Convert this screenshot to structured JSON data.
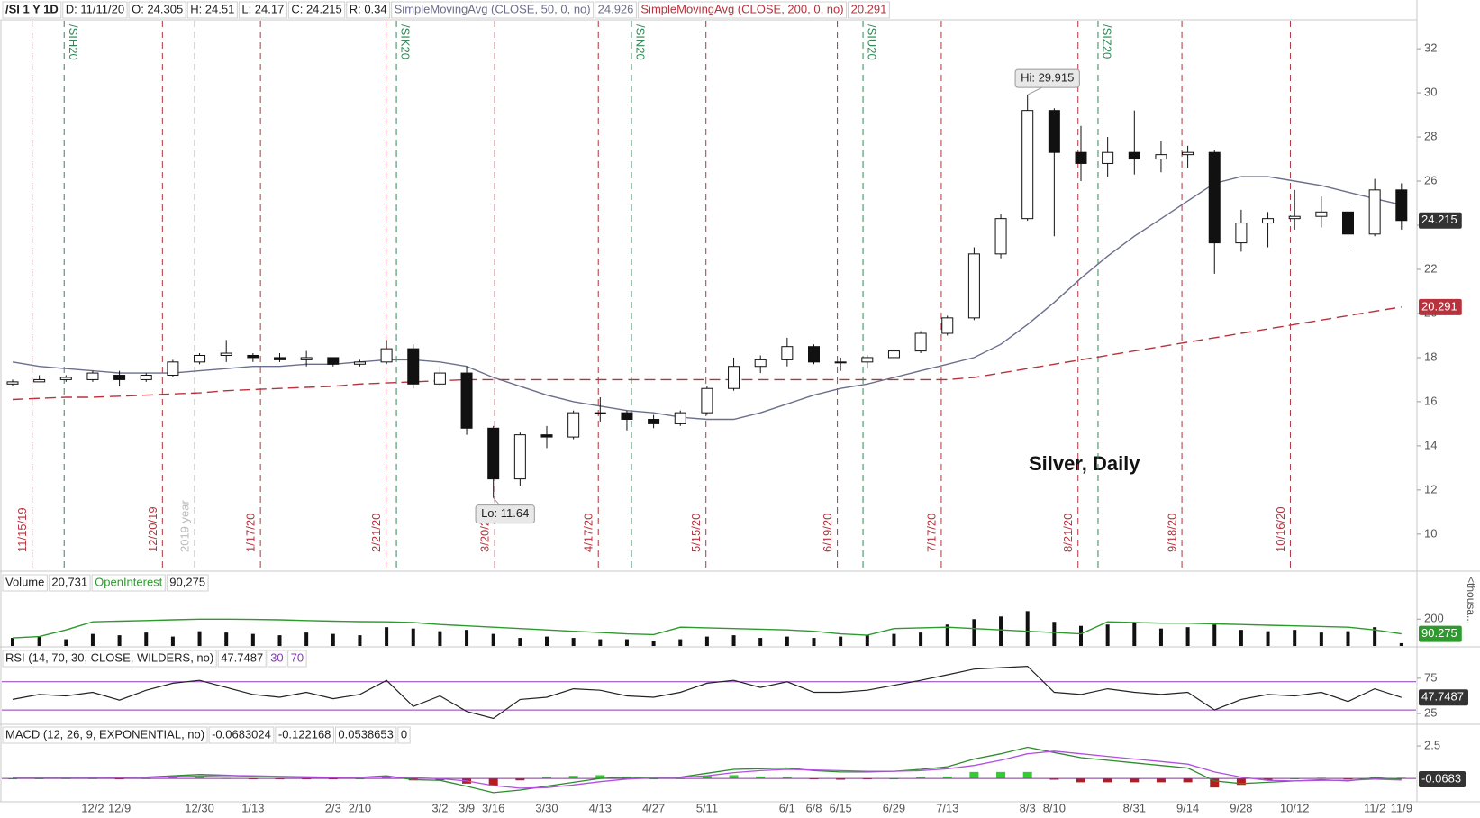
{
  "chart_data": [
    {
      "type": "candlestick",
      "title": "/SI 1 Y 1D",
      "header": [
        "D: 11/11/20",
        "O: 24.305",
        "H: 24.51",
        "L: 24.17",
        "C: 24.215",
        "R: 0.34"
      ],
      "categories": [
        null,
        null,
        null,
        "12/2",
        "12/9",
        null,
        null,
        "12/30",
        null,
        "1/13",
        null,
        null,
        "2/3",
        "2/10",
        null,
        null,
        "3/2",
        "3/9",
        "3/16",
        null,
        "3/30",
        null,
        "4/13",
        null,
        "4/27",
        null,
        "5/11",
        null,
        null,
        "6/1",
        "6/8",
        "6/15",
        null,
        "6/29",
        null,
        "7/13",
        null,
        null,
        "8/3",
        "8/10",
        null,
        null,
        "8/31",
        null,
        "9/14",
        null,
        "9/28",
        null,
        "10/12",
        null,
        null,
        "11/2",
        "11/9"
      ],
      "open": [
        16.8,
        16.9,
        17.0,
        17.0,
        17.2,
        17.0,
        17.2,
        17.8,
        18.1,
        18.1,
        18.0,
        17.9,
        18.0,
        17.7,
        17.8,
        18.4,
        16.8,
        17.3,
        14.8,
        12.5,
        14.5,
        14.4,
        15.5,
        15.5,
        15.2,
        15.0,
        15.5,
        16.6,
        17.6,
        17.9,
        18.5,
        17.8,
        17.8,
        18.0,
        18.3,
        19.1,
        19.8,
        22.7,
        24.3,
        29.2,
        27.3,
        26.8,
        27.3,
        27.0,
        27.2,
        27.3,
        23.2,
        24.1,
        24.3,
        24.4,
        24.6,
        23.6,
        25.6
      ],
      "high": [
        17.0,
        17.2,
        17.2,
        17.4,
        17.4,
        17.3,
        17.9,
        18.2,
        18.8,
        18.2,
        18.2,
        18.3,
        18.0,
        17.9,
        18.8,
        18.6,
        17.6,
        17.6,
        14.9,
        14.6,
        14.9,
        15.6,
        16.2,
        15.6,
        15.4,
        15.6,
        16.7,
        18.0,
        18.1,
        18.9,
        18.6,
        18.0,
        18.1,
        18.4,
        19.2,
        19.9,
        23.0,
        24.5,
        29.915,
        29.3,
        28.5,
        28.0,
        29.2,
        27.8,
        27.6,
        27.4,
        24.7,
        24.6,
        25.6,
        25.3,
        24.8,
        26.1,
        25.9
      ],
      "low": [
        16.7,
        16.9,
        16.9,
        16.9,
        16.7,
        16.9,
        17.1,
        17.7,
        17.8,
        17.8,
        17.8,
        17.6,
        17.6,
        17.6,
        17.7,
        16.6,
        16.7,
        14.5,
        11.64,
        12.2,
        13.9,
        14.3,
        15.1,
        14.7,
        14.8,
        14.9,
        15.4,
        16.5,
        17.3,
        17.6,
        17.7,
        17.4,
        17.5,
        17.9,
        18.2,
        19.0,
        19.7,
        22.5,
        24.2,
        23.5,
        26.0,
        26.2,
        26.3,
        26.4,
        26.6,
        21.8,
        22.8,
        23.0,
        23.8,
        23.9,
        22.9,
        23.5,
        23.8
      ],
      "close": [
        16.9,
        17.0,
        17.1,
        17.3,
        17.0,
        17.2,
        17.8,
        18.1,
        18.2,
        18.0,
        17.9,
        18.0,
        17.7,
        17.8,
        18.4,
        16.8,
        17.3,
        14.8,
        12.5,
        14.5,
        14.4,
        15.5,
        15.5,
        15.2,
        15.0,
        15.5,
        16.6,
        17.6,
        17.9,
        18.5,
        17.8,
        17.8,
        18.0,
        18.3,
        19.1,
        19.8,
        22.7,
        24.3,
        29.2,
        27.3,
        26.8,
        27.3,
        27.0,
        27.2,
        27.3,
        23.2,
        24.1,
        24.3,
        24.4,
        24.6,
        23.6,
        25.6,
        24.215
      ],
      "series": [
        {
          "name": "SimpleMovingAvg (CLOSE, 50, 0, no)",
          "color": "#6b6f8c",
          "dashed": false,
          "values": [
            17.8,
            17.6,
            17.5,
            17.4,
            17.3,
            17.3,
            17.3,
            17.4,
            17.5,
            17.6,
            17.6,
            17.7,
            17.7,
            17.8,
            17.9,
            17.9,
            17.8,
            17.6,
            17.1,
            16.7,
            16.3,
            16.0,
            15.8,
            15.6,
            15.5,
            15.3,
            15.2,
            15.2,
            15.5,
            15.9,
            16.3,
            16.6,
            16.8,
            17.1,
            17.4,
            17.7,
            18.0,
            18.6,
            19.5,
            20.5,
            21.6,
            22.6,
            23.5,
            24.3,
            25.1,
            25.9,
            26.2,
            26.2,
            26.0,
            25.8,
            25.5,
            25.2,
            24.926
          ]
        },
        {
          "name": "SimpleMovingAvg (CLOSE, 200, 0, no)",
          "color": "#b8323d",
          "dashed": true,
          "values": [
            16.1,
            16.15,
            16.2,
            16.2,
            16.25,
            16.3,
            16.35,
            16.4,
            16.5,
            16.55,
            16.6,
            16.65,
            16.7,
            16.8,
            16.85,
            16.9,
            16.95,
            17.0,
            17.0,
            17.0,
            17.0,
            17.0,
            17.0,
            17.0,
            17.0,
            17.0,
            17.0,
            17.0,
            17.0,
            17.0,
            17.0,
            17.0,
            17.0,
            17.0,
            17.0,
            17.0,
            17.1,
            17.3,
            17.5,
            17.7,
            17.9,
            18.1,
            18.3,
            18.5,
            18.7,
            18.9,
            19.1,
            19.3,
            19.5,
            19.7,
            19.9,
            20.1,
            20.291
          ]
        }
      ],
      "ylim": [
        8.36,
        33.27
      ],
      "yticks": [
        10,
        12,
        14,
        16,
        18,
        20,
        22,
        24,
        26,
        28,
        30,
        32
      ],
      "hi_label": "Hi: 29.915",
      "lo_label": "Lo: 11.64",
      "annotations": [
        "Silver, Daily"
      ],
      "expiration_lines": {
        "color": "#2e8b57",
        "items": [
          {
            "label": "/SIH20",
            "x": 1.93
          },
          {
            "label": "/SIK20",
            "x": 14.37
          },
          {
            "label": "/SIN20",
            "x": 23.17
          },
          {
            "label": "/SIU20",
            "x": 31.84
          },
          {
            "label": "/SIZ20",
            "x": 40.64
          }
        ]
      },
      "monthly_lines": {
        "color": "#b8323d",
        "items": [
          {
            "label": "11/15/19",
            "x": 0.73
          },
          {
            "label": "12/20/19",
            "x": 5.61
          },
          {
            "label": "1/17/20",
            "x": 9.28
          },
          {
            "label": "2/21/20",
            "x": 13.98
          },
          {
            "label": "3/20/20",
            "x": 18.05
          },
          {
            "label": "4/17/20",
            "x": 21.93
          },
          {
            "label": "5/15/20",
            "x": 25.96
          },
          {
            "label": "6/19/20",
            "x": 30.88
          },
          {
            "label": "7/17/20",
            "x": 34.77
          },
          {
            "label": "8/21/20",
            "x": 39.89
          },
          {
            "label": "9/18/20",
            "x": 43.78
          },
          {
            "label": "10/16/20",
            "x": 47.84
          }
        ]
      },
      "year_line": {
        "color": "#bbbbbb",
        "label": "2019 year",
        "x": 6.81
      }
    },
    {
      "type": "bar",
      "title": "Volume",
      "volume_label": "20,731",
      "unit_label": "<thousa...",
      "color": "#111111",
      "values": [
        60,
        70,
        50,
        90,
        80,
        100,
        70,
        110,
        100,
        90,
        80,
        100,
        90,
        80,
        140,
        130,
        110,
        120,
        90,
        60,
        70,
        60,
        50,
        50,
        40,
        50,
        70,
        80,
        60,
        70,
        60,
        70,
        80,
        90,
        100,
        160,
        200,
        220,
        260,
        180,
        150,
        160,
        170,
        130,
        140,
        160,
        120,
        110,
        120,
        100,
        110,
        140,
        20.731
      ],
      "series": [
        {
          "name": "OpenInterest",
          "label": "90,275",
          "color": "#2e9a2e",
          "values": [
            60,
            70,
            120,
            180,
            185,
            190,
            195,
            200,
            200,
            198,
            195,
            190,
            185,
            182,
            180,
            175,
            160,
            150,
            140,
            130,
            120,
            110,
            100,
            90,
            85,
            140,
            135,
            130,
            125,
            120,
            110,
            90,
            80,
            130,
            135,
            140,
            130,
            120,
            110,
            100,
            90,
            180,
            175,
            170,
            170,
            165,
            160,
            155,
            150,
            145,
            140,
            120,
            90.275
          ]
        }
      ],
      "ylim": [
        0,
        545
      ],
      "yticks": [
        200
      ]
    },
    {
      "type": "line",
      "title": "RSI (14, 70, 30, CLOSE, WILDERS, no)",
      "color": "#222222",
      "level_color": "#8a3ab9",
      "levels": [
        30,
        70
      ],
      "values": [
        45,
        52,
        50,
        55,
        44,
        58,
        68,
        72,
        62,
        52,
        48,
        55,
        46,
        52,
        72,
        35,
        50,
        28,
        18,
        45,
        48,
        60,
        58,
        50,
        48,
        55,
        68,
        72,
        62,
        70,
        55,
        55,
        58,
        65,
        72,
        80,
        88,
        90,
        92,
        55,
        52,
        60,
        55,
        52,
        55,
        30,
        45,
        52,
        50,
        55,
        42,
        60,
        47.7487
      ],
      "ylim": [
        11,
        117
      ],
      "yticks": [
        25,
        75
      ]
    },
    {
      "type": "macd",
      "title": "MACD (12, 26, 9, EXPONENTIAL, no)",
      "badge": "-0.0683",
      "levels": [
        0
      ],
      "level_color": "#7a3a8a",
      "series": [
        {
          "color": "#2e8b2e",
          "values": [
            0.05,
            0.06,
            0.08,
            0.1,
            0.05,
            0.1,
            0.2,
            0.3,
            0.25,
            0.15,
            0.1,
            0.08,
            0.05,
            0.08,
            0.2,
            -0.1,
            -0.15,
            -0.6,
            -1.1,
            -0.9,
            -0.6,
            -0.3,
            0,
            0.1,
            0.05,
            0.1,
            0.4,
            0.7,
            0.75,
            0.8,
            0.6,
            0.5,
            0.5,
            0.55,
            0.7,
            0.9,
            1.5,
            1.9,
            2.4,
            2.0,
            1.6,
            1.4,
            1.2,
            1.0,
            0.8,
            -0.2,
            -0.4,
            -0.3,
            -0.2,
            -0.1,
            -0.2,
            0.05,
            -0.0683024
          ]
        },
        {
          "color": "#b050e0",
          "values": [
            0.05,
            0.05,
            0.06,
            0.08,
            0.07,
            0.08,
            0.12,
            0.18,
            0.22,
            0.2,
            0.16,
            0.12,
            0.09,
            0.08,
            0.12,
            0.05,
            -0.02,
            -0.2,
            -0.55,
            -0.75,
            -0.7,
            -0.5,
            -0.25,
            -0.05,
            0.05,
            0.08,
            0.2,
            0.45,
            0.6,
            0.7,
            0.65,
            0.6,
            0.55,
            0.55,
            0.6,
            0.75,
            1.0,
            1.4,
            1.9,
            2.1,
            1.9,
            1.7,
            1.5,
            1.3,
            1.1,
            0.5,
            0.1,
            -0.15,
            -0.2,
            -0.15,
            -0.15,
            -0.05,
            -0.122168
          ]
        }
      ],
      "histogram": {
        "up_color": "#33cc33",
        "down_color": "#b71c1c",
        "values": [
          0,
          0.01,
          0.02,
          0.02,
          -0.02,
          0.02,
          0.08,
          0.12,
          0.03,
          -0.05,
          -0.06,
          -0.04,
          -0.04,
          0,
          0.08,
          -0.15,
          -0.13,
          -0.4,
          -0.55,
          -0.15,
          0.1,
          0.2,
          0.25,
          0.15,
          0,
          0.02,
          0.2,
          0.25,
          0.15,
          0.1,
          -0.05,
          -0.1,
          -0.05,
          0,
          0.1,
          0.15,
          0.5,
          0.5,
          0.5,
          -0.1,
          -0.3,
          -0.3,
          -0.3,
          -0.3,
          -0.3,
          -0.7,
          -0.5,
          -0.15,
          0,
          0.05,
          -0.05,
          0.1,
          0.0538653
        ]
      },
      "ylim": [
        -1.8,
        4.1
      ],
      "yticks": [
        2.5
      ]
    }
  ]
}
